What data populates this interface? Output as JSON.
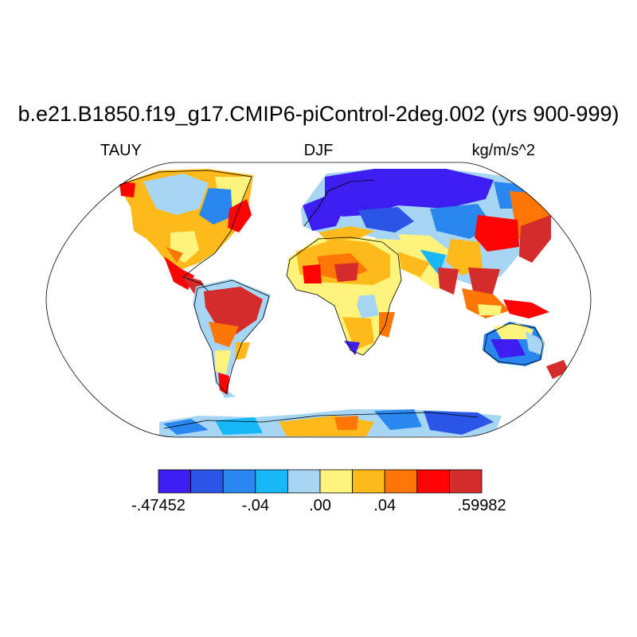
{
  "title": "b.e21.B1850.f19_g17.CMIP6-piControl-2deg.002 (yrs 900-999)",
  "variable": "TAUY",
  "season": "DJF",
  "units": "kg/m/s^2",
  "colorbar": {
    "colors": [
      "#3d1ef0",
      "#2a55e6",
      "#2b87f0",
      "#17b8f8",
      "#a6d6f4",
      "#fef47c",
      "#feba1a",
      "#fe7706",
      "#fd0404",
      "#d42b2b"
    ],
    "labels": [
      {
        "text": "-.47452",
        "boundary": 0
      },
      {
        "text": "-.04",
        "boundary": 3
      },
      {
        "text": ".00",
        "boundary": 5
      },
      {
        "text": ".04",
        "boundary": 7
      },
      {
        "text": ".59982",
        "boundary": 10
      }
    ]
  }
}
